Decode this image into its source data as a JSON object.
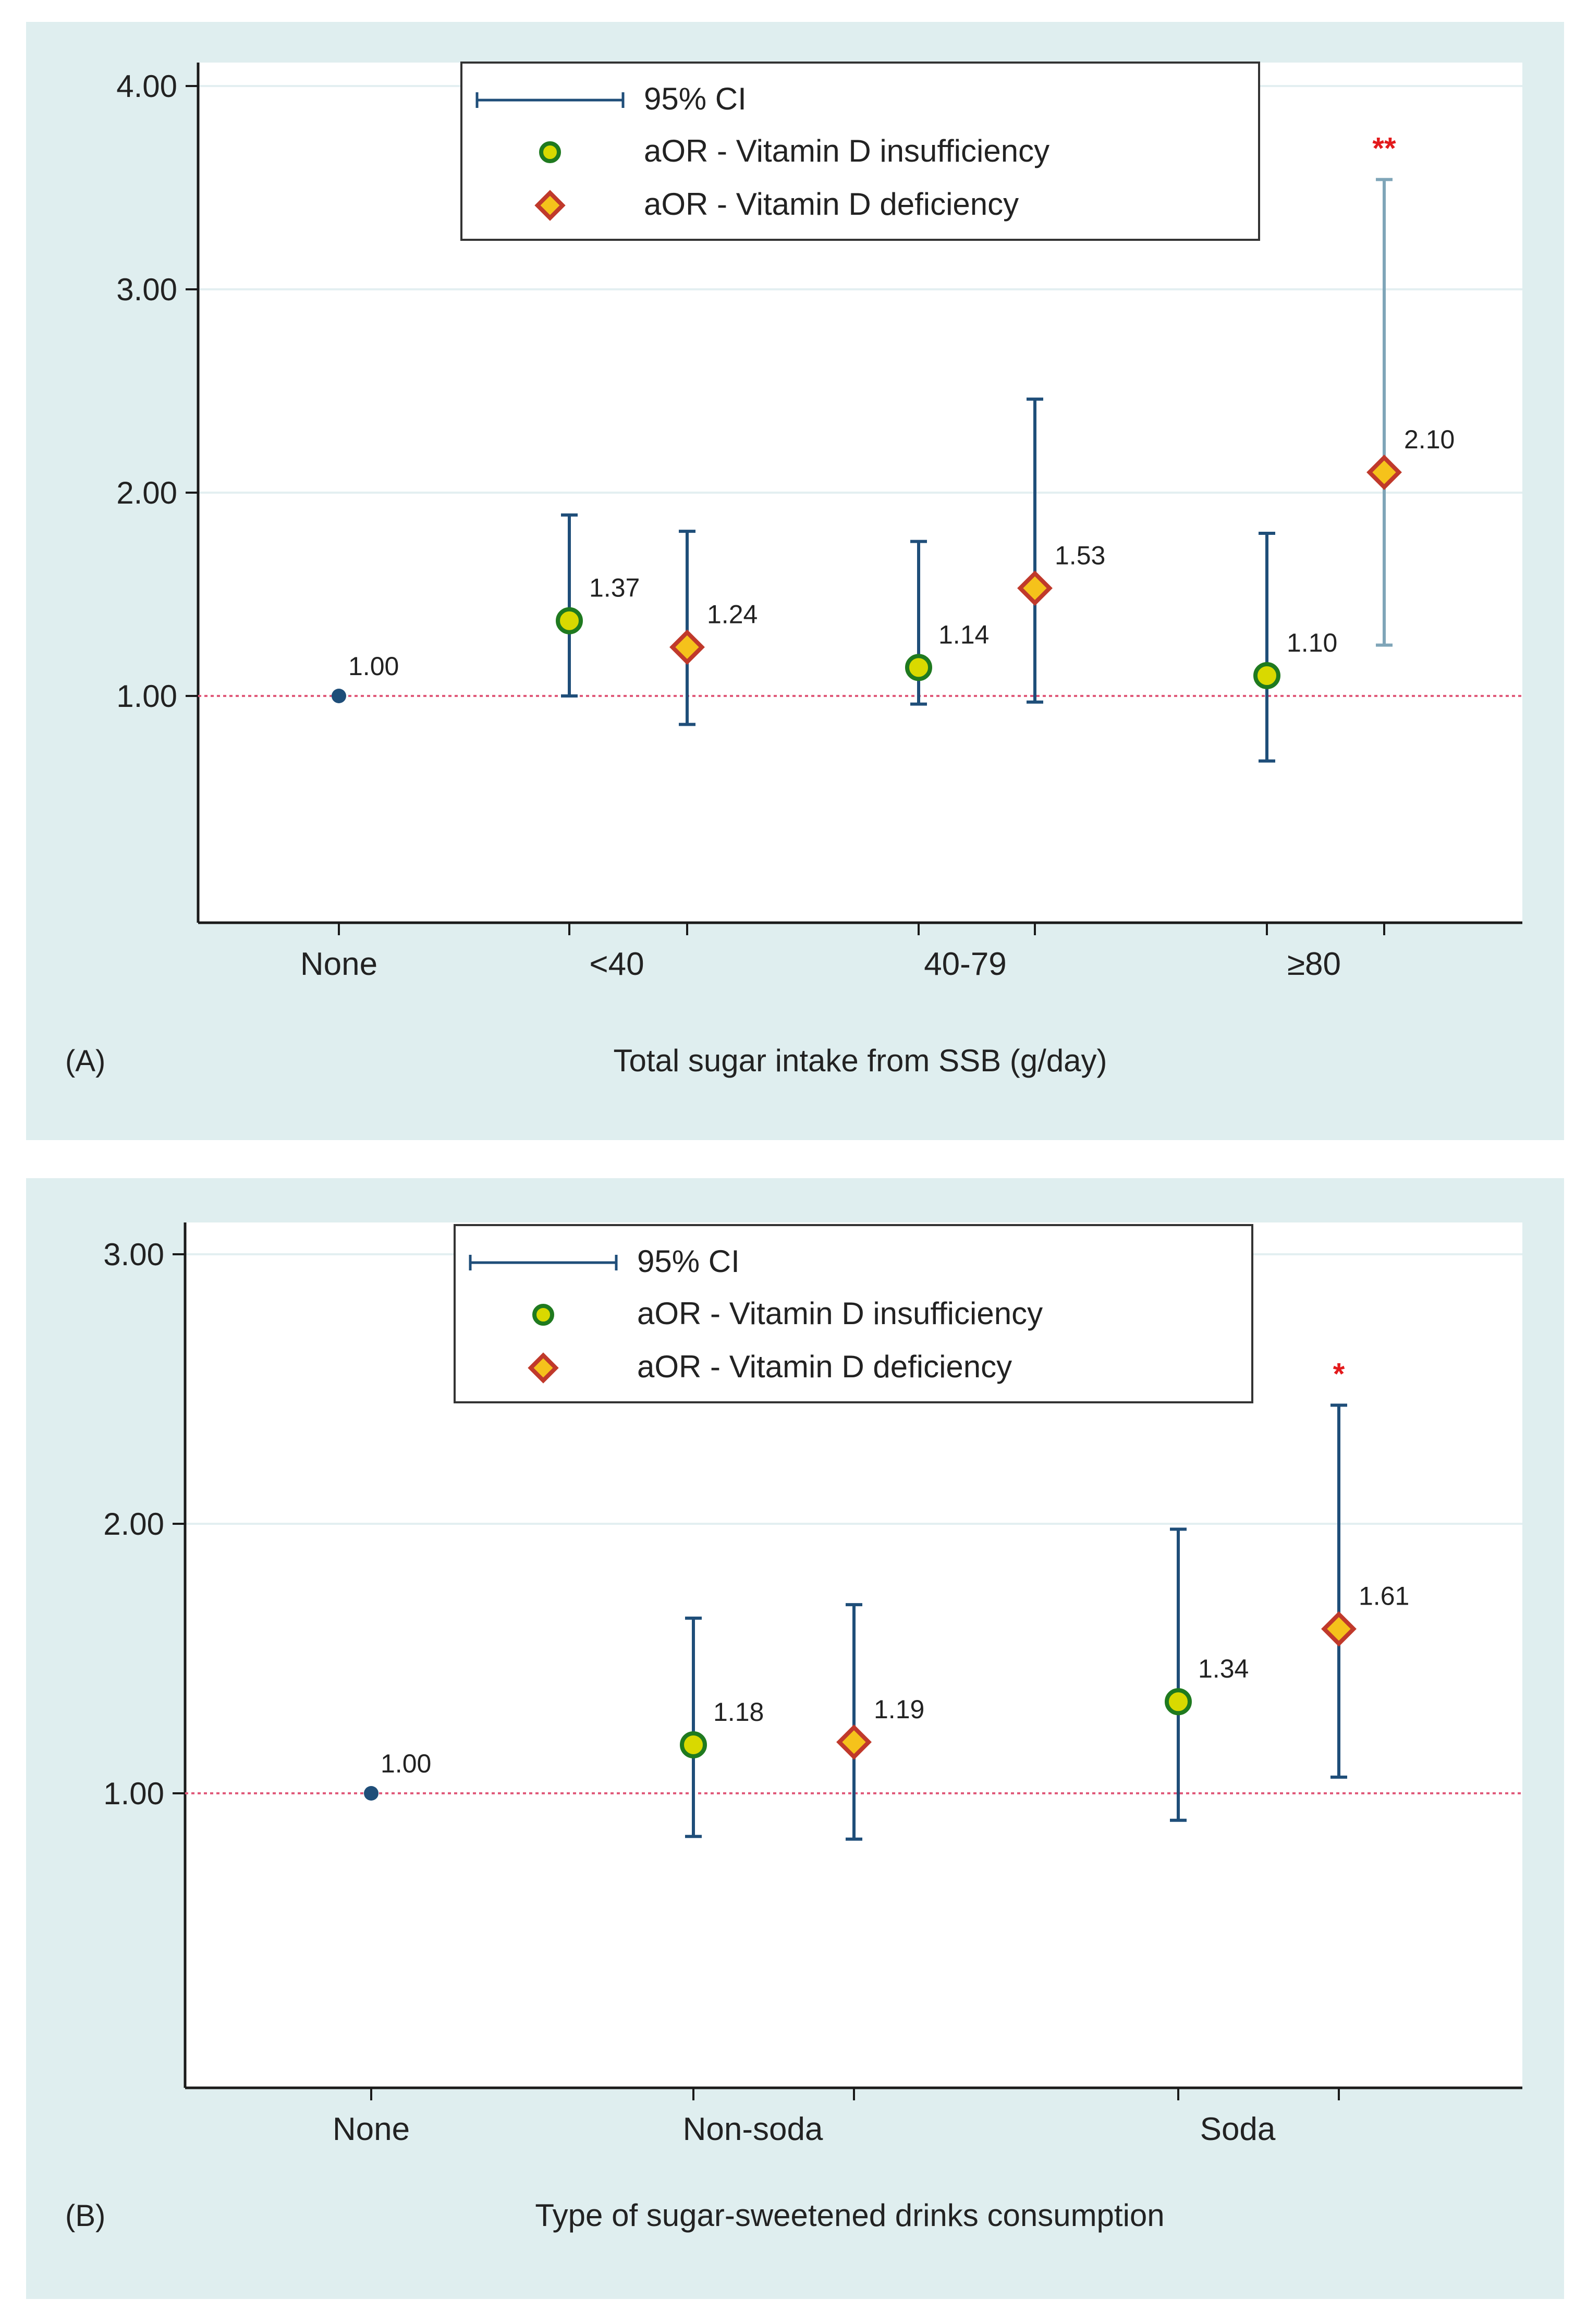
{
  "colors": {
    "panel_bg": "#dfeeef",
    "plot_bg": "#ffffff",
    "grid": "#e3eff1",
    "axis": "#1a1a1a",
    "ci_line": "#1f4e79",
    "ci_line_highlight": "#7fa5b8",
    "ref_line": "#e05a7a",
    "insufficiency_fill": "#d9d900",
    "insufficiency_edge": "#1f7a1f",
    "deficiency_fill": "#f5c21b",
    "deficiency_edge": "#c0392b",
    "reference_point": "#1f4e79",
    "significance": "#e31a1c"
  },
  "chart_data": [
    {
      "type": "scatter",
      "panel_label": "(A)",
      "xlabel": "Total sugar intake from SSB (g/day)",
      "ylabel": "",
      "yticks": [
        "1.00",
        "2.00",
        "3.00",
        "4.00"
      ],
      "ylim": [
        0,
        4.1
      ],
      "categories": [
        "None",
        "<40",
        "40-79",
        "≥80"
      ],
      "legend": {
        "position": "top-center",
        "ci_label": "95% CI",
        "insufficiency_label": "aOR - Vitamin D insufficiency",
        "deficiency_label": "aOR - Vitamin D deficiency"
      },
      "reference": {
        "category": "None",
        "value": 1.0,
        "label": "1.00"
      },
      "series": [
        {
          "name": "aOR - Vitamin D insufficiency",
          "values": [
            null,
            1.37,
            1.14,
            1.1
          ],
          "labels": [
            "",
            "1.37",
            "1.14",
            "1.10"
          ],
          "ci_lower": [
            null,
            1.0,
            0.96,
            0.68
          ],
          "ci_upper": [
            null,
            1.89,
            1.76,
            1.8
          ]
        },
        {
          "name": "aOR - Vitamin D deficiency",
          "values": [
            null,
            1.24,
            1.53,
            2.1
          ],
          "labels": [
            "",
            "1.24",
            "1.53",
            "2.10"
          ],
          "ci_lower": [
            null,
            0.86,
            0.97,
            1.25
          ],
          "ci_upper": [
            null,
            1.81,
            2.46,
            3.54
          ]
        }
      ],
      "annotations": [
        {
          "category": "≥80",
          "series": "aOR - Vitamin D deficiency",
          "text": "**"
        }
      ]
    },
    {
      "type": "scatter",
      "panel_label": "(B)",
      "xlabel": "Type of sugar-sweetened drinks consumption",
      "ylabel": "",
      "yticks": [
        "1.00",
        "2.00",
        "3.00"
      ],
      "ylim": [
        0,
        3.05
      ],
      "categories": [
        "None",
        "Non-soda",
        "Soda"
      ],
      "legend": {
        "position": "top-center",
        "ci_label": "95% CI",
        "insufficiency_label": "aOR - Vitamin D insufficiency",
        "deficiency_label": "aOR - Vitamin D deficiency"
      },
      "reference": {
        "category": "None",
        "value": 1.0,
        "label": "1.00"
      },
      "series": [
        {
          "name": "aOR - Vitamin D insufficiency",
          "values": [
            null,
            1.18,
            1.34
          ],
          "labels": [
            "",
            "1.18",
            "1.34"
          ],
          "ci_lower": [
            null,
            0.84,
            0.9
          ],
          "ci_upper": [
            null,
            1.65,
            1.98
          ]
        },
        {
          "name": "aOR - Vitamin D deficiency",
          "values": [
            null,
            1.19,
            1.61
          ],
          "labels": [
            "",
            "1.19",
            "1.61"
          ],
          "ci_lower": [
            null,
            0.83,
            1.06
          ],
          "ci_upper": [
            null,
            1.7,
            2.44
          ]
        }
      ],
      "annotations": [
        {
          "category": "Soda",
          "series": "aOR - Vitamin D deficiency",
          "text": "*"
        }
      ]
    }
  ]
}
